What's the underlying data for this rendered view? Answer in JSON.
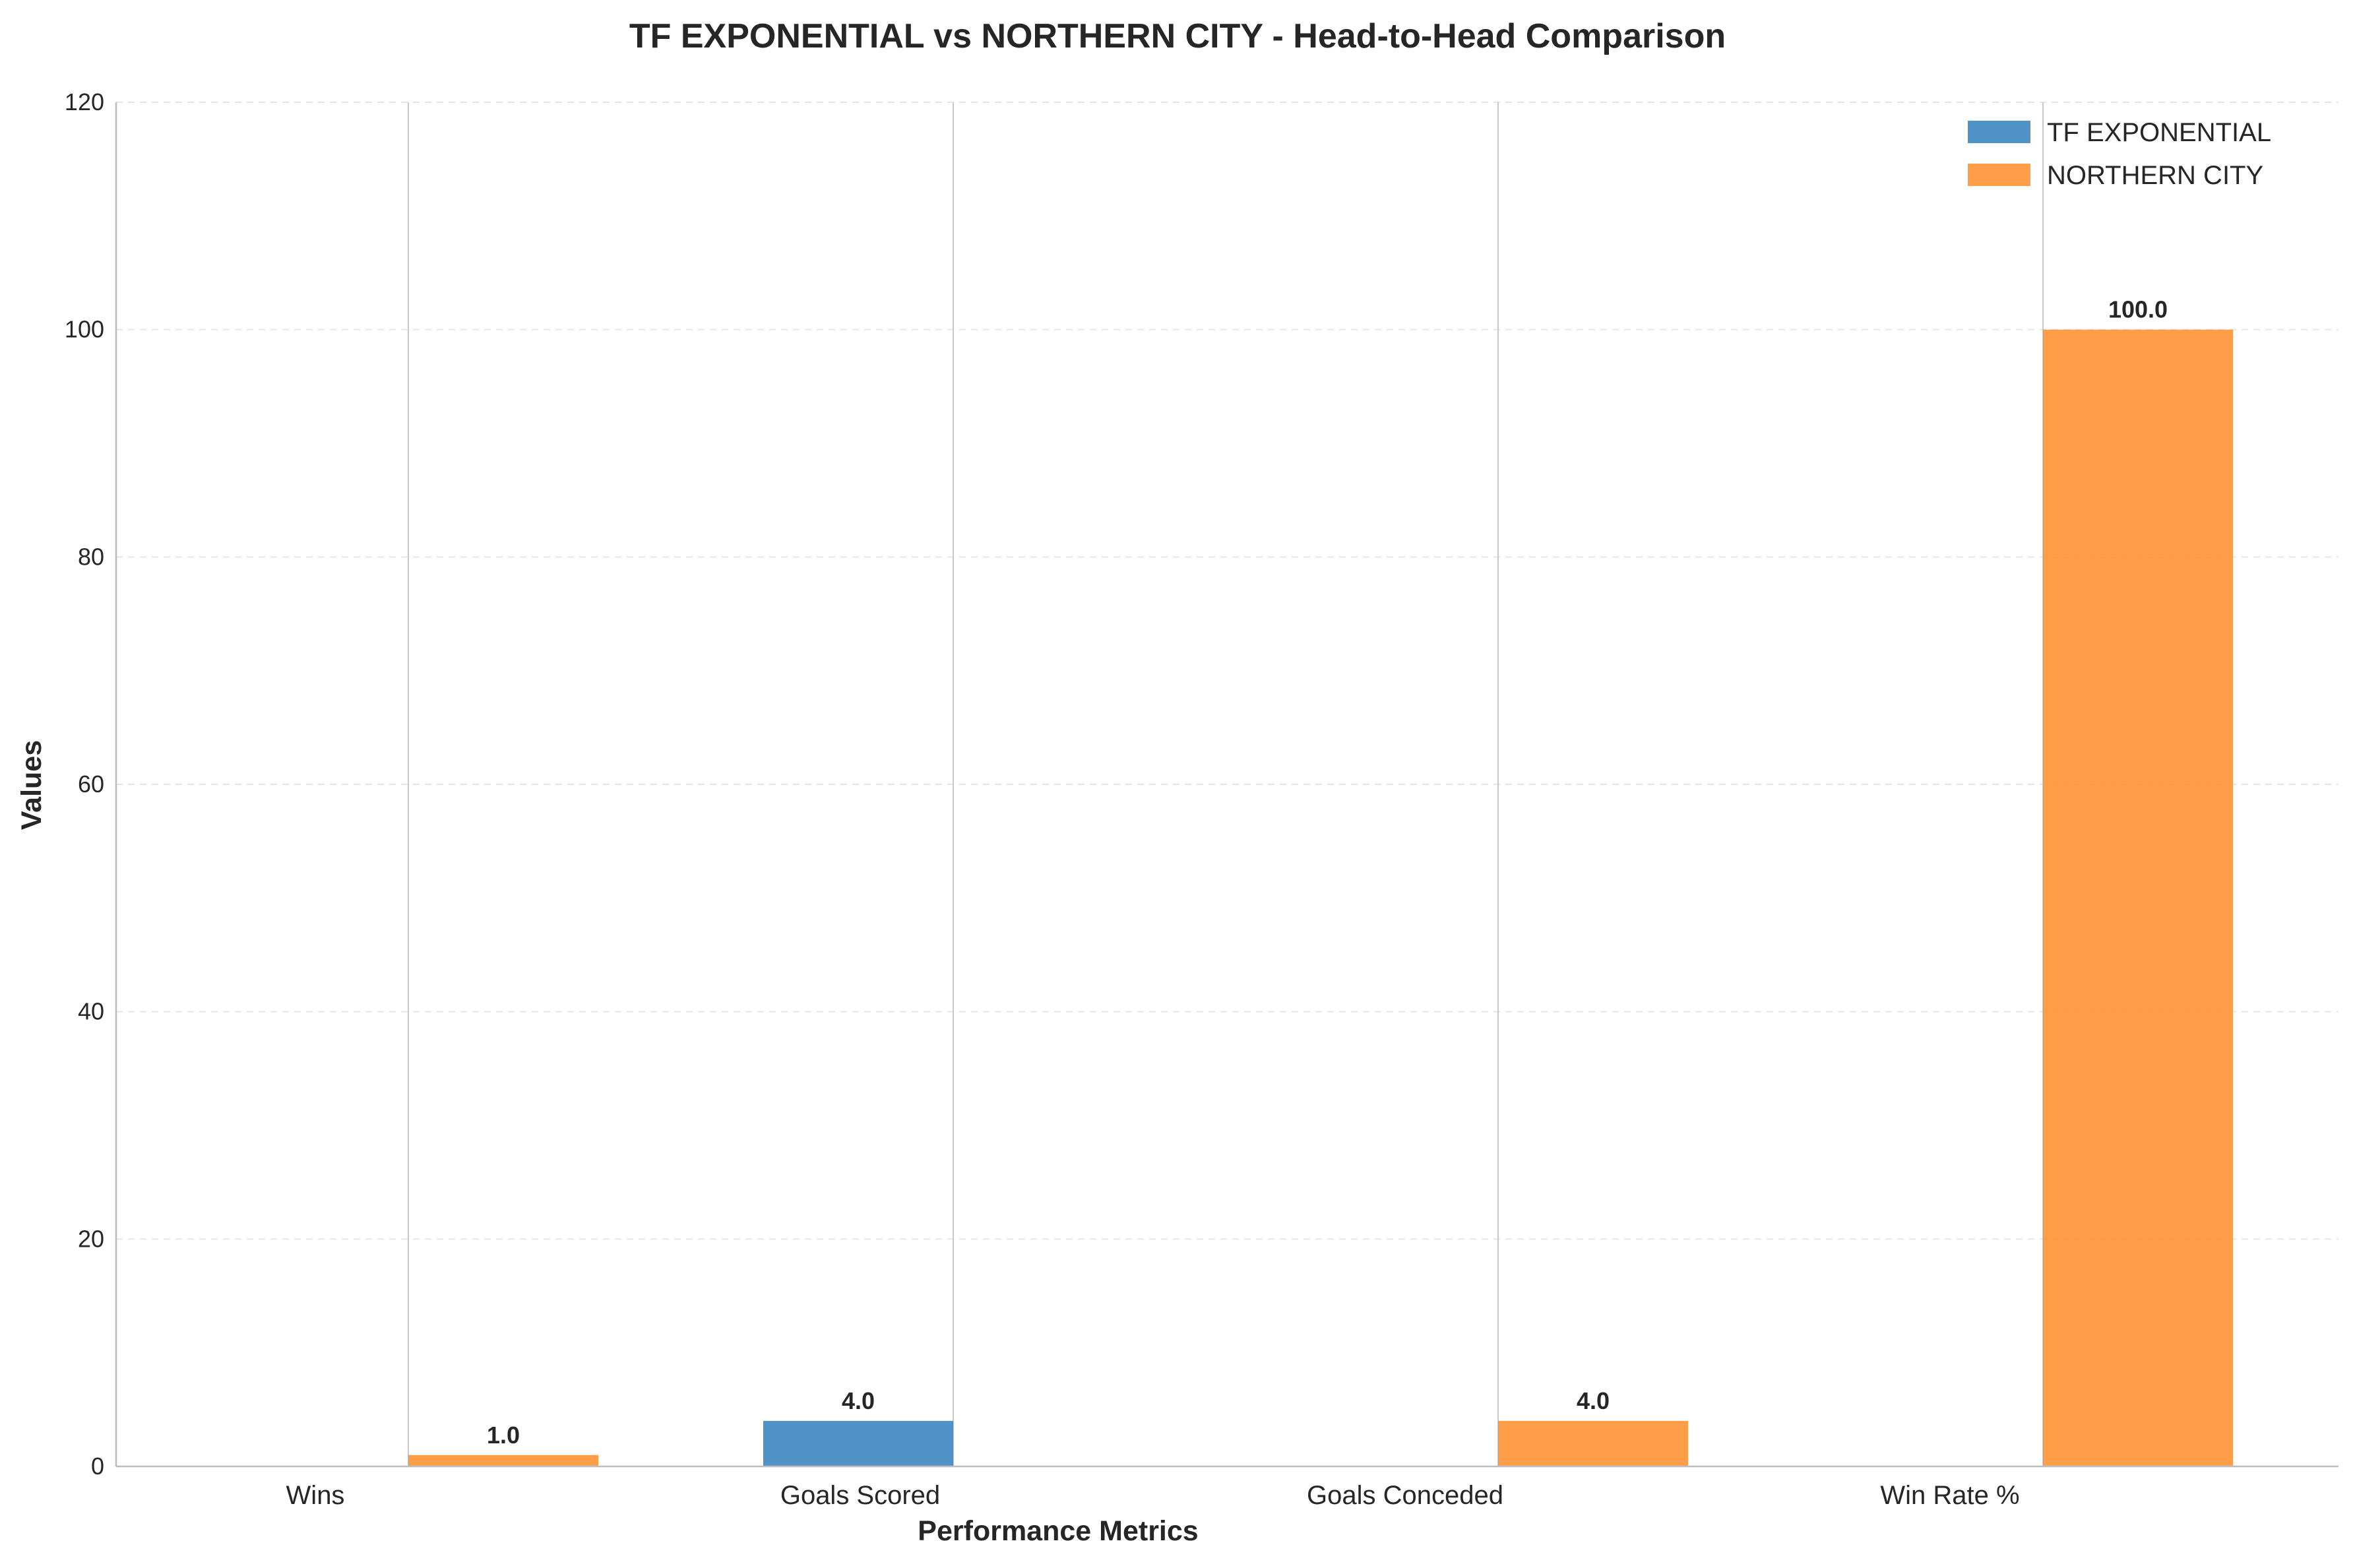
{
  "chart_data": {
    "type": "bar",
    "title": "TF EXPONENTIAL vs NORTHERN CITY - Head-to-Head Comparison",
    "xlabel": "Performance Metrics",
    "ylabel": "Values",
    "categories": [
      "Wins",
      "Goals Scored",
      "Goals Conceded",
      "Win Rate %"
    ],
    "series": [
      {
        "name": "TF EXPONENTIAL",
        "color": "#2f7fbc",
        "values": [
          0.0,
          4.0,
          0.0,
          0.0
        ],
        "labels": [
          "",
          "4.0",
          "",
          ""
        ]
      },
      {
        "name": "NORTHERN CITY",
        "color": "#ff8c28",
        "values": [
          1.0,
          0.0,
          4.0,
          100.0
        ],
        "labels": [
          "1.0",
          "",
          "4.0",
          "100.0"
        ]
      }
    ],
    "ylim": [
      0,
      120
    ],
    "yticks": [
      "0",
      "20",
      "40",
      "60",
      "80",
      "100",
      "120"
    ],
    "grid": true,
    "legend_position": "top-right"
  }
}
